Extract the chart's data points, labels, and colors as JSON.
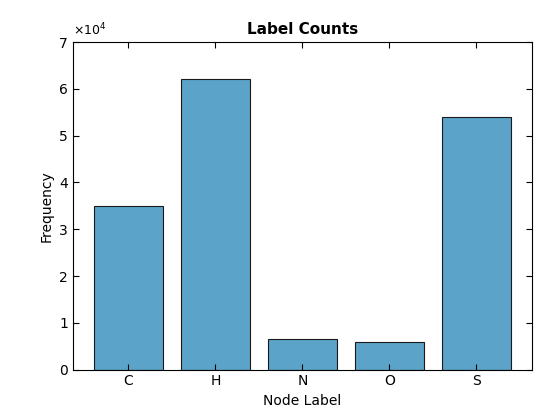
{
  "categories": [
    "C",
    "H",
    "N",
    "O",
    "S"
  ],
  "values": [
    35000,
    62000,
    6500,
    5800,
    54000
  ],
  "bar_color": "#5ba3c9",
  "bar_edge_color": "#1a1a1a",
  "title": "Label Counts",
  "xlabel": "Node Label",
  "ylabel": "Frequency",
  "ylim": [
    0,
    70000
  ],
  "title_fontsize": 11,
  "label_fontsize": 10,
  "tick_fontsize": 10,
  "background_color": "#ffffff"
}
